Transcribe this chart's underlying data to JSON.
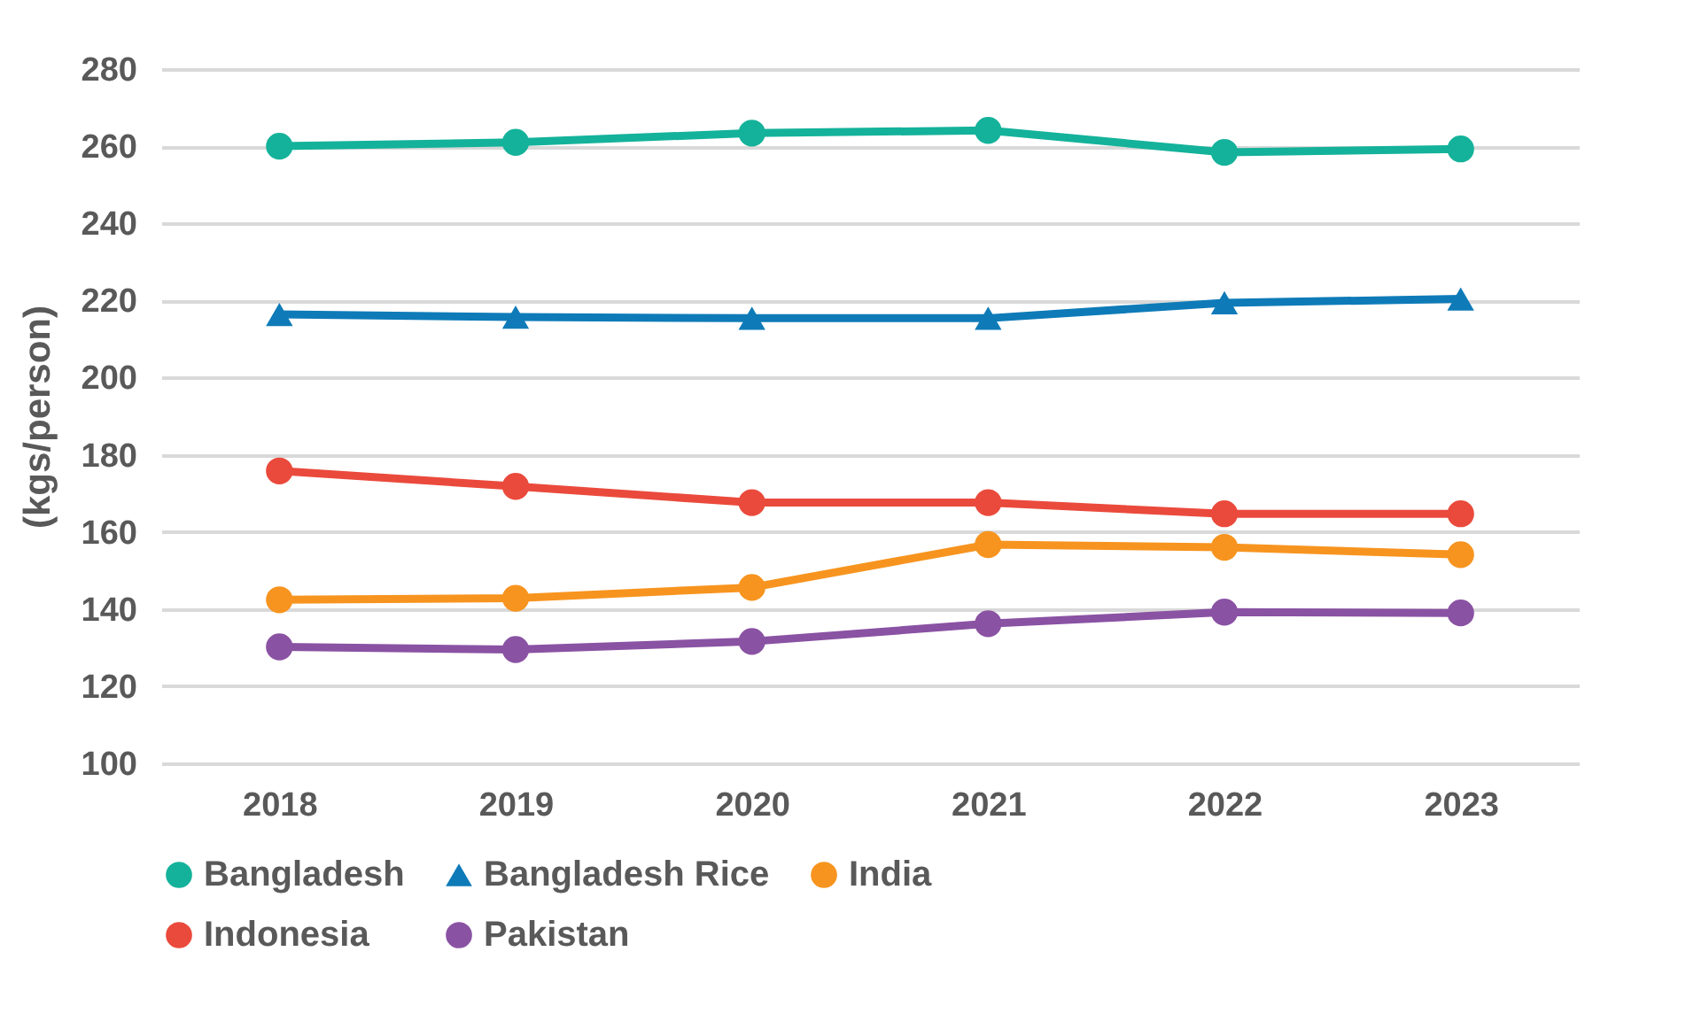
{
  "chart_data": {
    "type": "line",
    "ylabel": "(kgs/person)",
    "categories": [
      "2018",
      "2019",
      "2020",
      "2021",
      "2022",
      "2023"
    ],
    "ylim": [
      100,
      280
    ],
    "yticks": [
      100,
      120,
      140,
      160,
      180,
      200,
      220,
      240,
      260,
      280
    ],
    "grid": "y",
    "legend": "bottom",
    "series": [
      {
        "name": "Bangladesh",
        "color": "#14b29a",
        "marker": "circle",
        "values": [
          260.0,
          261.0,
          263.4,
          264.1,
          258.4,
          259.3
        ]
      },
      {
        "name": "Bangladesh Rice",
        "color": "#0e7bb8",
        "marker": "triangle",
        "values": [
          216.4,
          215.7,
          215.4,
          215.4,
          219.4,
          220.4
        ]
      },
      {
        "name": "India",
        "color": "#f7941f",
        "marker": "circle",
        "values": [
          142.4,
          142.8,
          145.6,
          156.7,
          156.0,
          154.1
        ]
      },
      {
        "name": "Indonesia",
        "color": "#ea4a3c",
        "marker": "circle",
        "values": [
          175.8,
          171.8,
          167.6,
          167.6,
          164.7,
          164.7
        ]
      },
      {
        "name": "Pakistan",
        "color": "#8a52a3",
        "marker": "circle",
        "values": [
          130.2,
          129.5,
          131.6,
          136.2,
          139.2,
          139.0
        ]
      }
    ]
  }
}
